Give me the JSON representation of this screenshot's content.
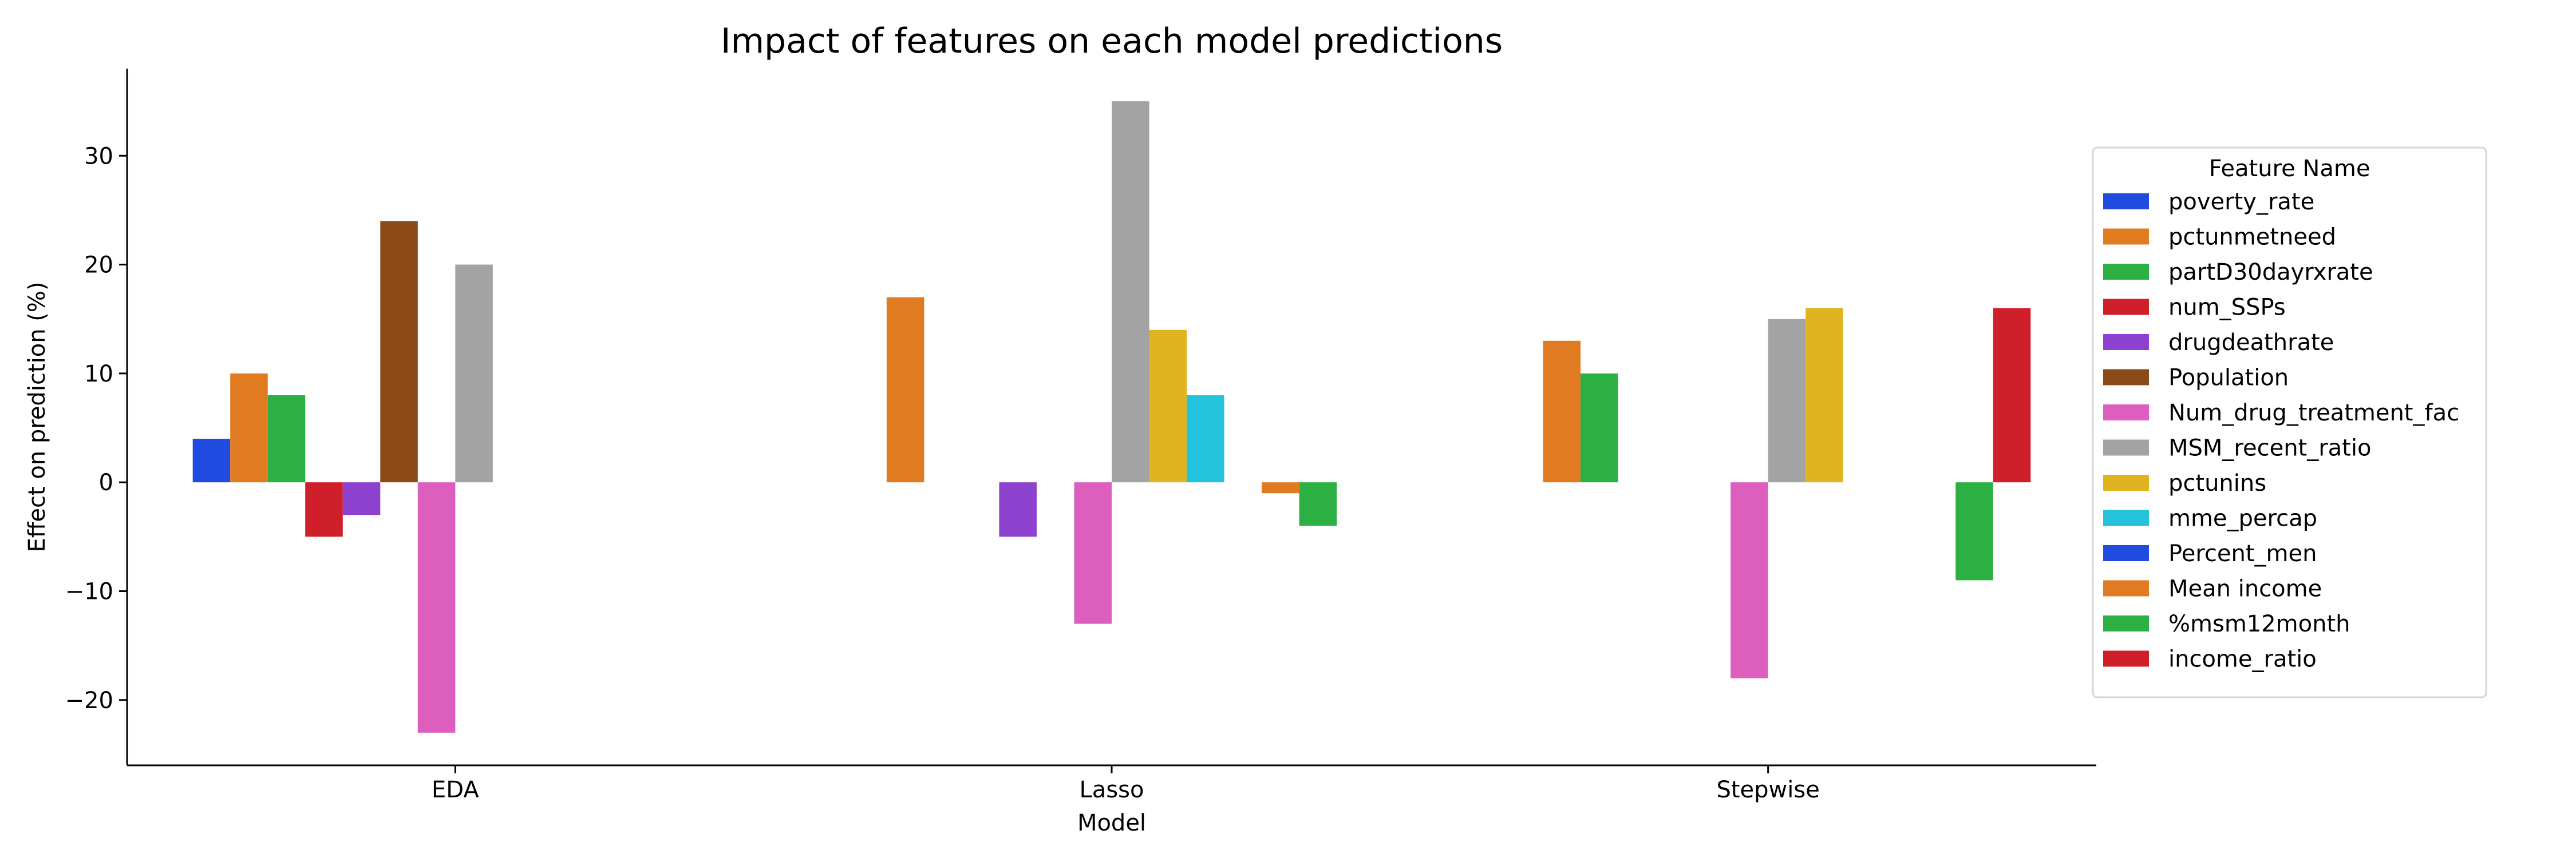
{
  "chart_data": {
    "type": "bar",
    "title": "Impact of features on each model predictions",
    "xlabel": "Model",
    "ylabel": "Effect on prediction (%)",
    "categories": [
      "EDA",
      "Lasso",
      "Stepwise"
    ],
    "ylim": [
      -26,
      38
    ],
    "yticks": [
      -20,
      -10,
      0,
      10,
      20,
      30
    ],
    "ytick_labels": [
      "−20",
      "−10",
      "0",
      "10",
      "20",
      "30"
    ],
    "grid": false,
    "legend": {
      "title": "Feature Name",
      "position": "right"
    },
    "series": [
      {
        "name": "poverty_rate",
        "color": "#1f4be0",
        "values": [
          4,
          null,
          null
        ]
      },
      {
        "name": "pctunmetneed",
        "color": "#e07b22",
        "values": [
          10,
          17,
          13
        ]
      },
      {
        "name": "partD30dayrxrate",
        "color": "#2db043",
        "values": [
          8,
          null,
          10
        ]
      },
      {
        "name": "num_SSPs",
        "color": "#cf1f2b",
        "values": [
          -5,
          null,
          null
        ]
      },
      {
        "name": "drugdeathrate",
        "color": "#8c41cf",
        "values": [
          -3,
          -5,
          null
        ]
      },
      {
        "name": "Population",
        "color": "#8b4a16",
        "values": [
          24,
          null,
          null
        ]
      },
      {
        "name": "Num_drug_treatment_fac",
        "color": "#dc5fbd",
        "values": [
          -23,
          -13,
          -18
        ]
      },
      {
        "name": "MSM_recent_ratio",
        "color": "#a3a3a3",
        "values": [
          20,
          35,
          15
        ]
      },
      {
        "name": "pctunins",
        "color": "#e0b321",
        "values": [
          null,
          14,
          16
        ]
      },
      {
        "name": "mme_percap",
        "color": "#23c3de",
        "values": [
          null,
          8,
          null
        ]
      },
      {
        "name": "Percent_men",
        "color": "#1f4be0",
        "values": [
          null,
          null,
          null
        ]
      },
      {
        "name": "Mean income",
        "color": "#e07b22",
        "values": [
          null,
          -1,
          null
        ]
      },
      {
        "name": "%msm12month",
        "color": "#2db043",
        "values": [
          null,
          -4,
          -9
        ]
      },
      {
        "name": "income_ratio",
        "color": "#cf1f2b",
        "values": [
          null,
          null,
          16
        ]
      }
    ]
  }
}
